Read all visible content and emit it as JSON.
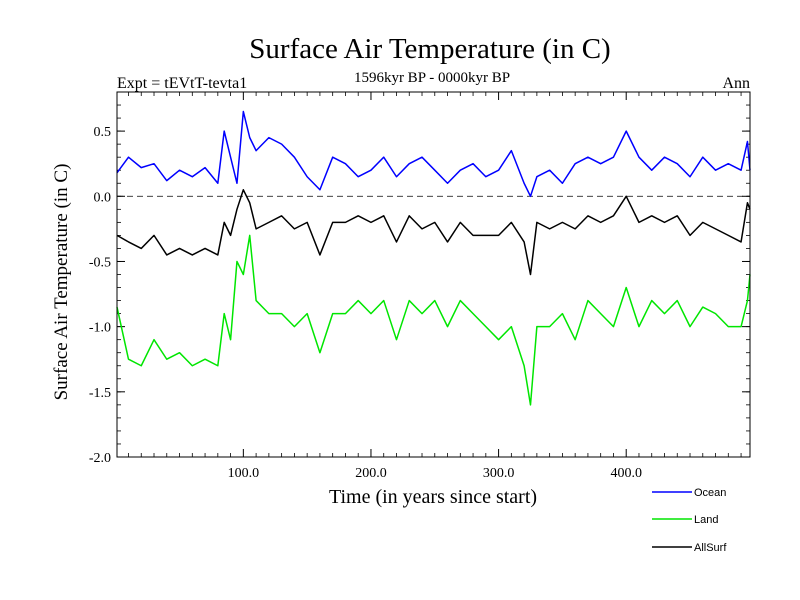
{
  "chart_data": {
    "type": "line",
    "title": "Surface Air Temperature (in C)",
    "subtitle": "1596kyr BP - 0000kyr BP",
    "top_left_label": "Expt = tEVtT-tevta1",
    "top_right_label": "Ann",
    "xlabel": "Time (in years since start)",
    "ylabel": "Surface Air Temperature (in C)",
    "xlim": [
      1,
      497
    ],
    "ylim": [
      -2.0,
      0.8
    ],
    "xticks": [
      {
        "value": 100,
        "label": "100.0"
      },
      {
        "value": 200,
        "label": "200.0"
      },
      {
        "value": 300,
        "label": "300.0"
      },
      {
        "value": 400,
        "label": "400.0"
      }
    ],
    "yticks": [
      {
        "value": 0.5,
        "label": "0.5"
      },
      {
        "value": 0.0,
        "label": "0.0"
      },
      {
        "value": -0.5,
        "label": "-0.5"
      },
      {
        "value": -1.0,
        "label": "-1.0"
      },
      {
        "value": -1.5,
        "label": "-1.5"
      },
      {
        "value": -2.0,
        "label": "-2.0"
      }
    ],
    "reference_line": 0.0,
    "x": [
      1,
      10,
      20,
      30,
      40,
      50,
      60,
      70,
      80,
      85,
      90,
      95,
      100,
      105,
      110,
      120,
      130,
      140,
      150,
      160,
      170,
      180,
      190,
      200,
      210,
      220,
      230,
      240,
      250,
      260,
      270,
      280,
      290,
      300,
      310,
      320,
      325,
      330,
      340,
      350,
      360,
      370,
      380,
      390,
      400,
      410,
      420,
      430,
      440,
      450,
      460,
      470,
      480,
      490,
      495,
      497
    ],
    "series": [
      {
        "name": "Ocean",
        "color": "#0000ff",
        "values": [
          0.18,
          0.3,
          0.22,
          0.25,
          0.12,
          0.2,
          0.15,
          0.22,
          0.1,
          0.5,
          0.3,
          0.1,
          0.65,
          0.45,
          0.35,
          0.45,
          0.4,
          0.3,
          0.15,
          0.05,
          0.3,
          0.25,
          0.15,
          0.2,
          0.3,
          0.15,
          0.25,
          0.3,
          0.2,
          0.1,
          0.2,
          0.25,
          0.15,
          0.2,
          0.35,
          0.1,
          0.0,
          0.15,
          0.2,
          0.1,
          0.25,
          0.3,
          0.25,
          0.3,
          0.5,
          0.3,
          0.2,
          0.3,
          0.25,
          0.15,
          0.3,
          0.2,
          0.25,
          0.2,
          0.42,
          0.2
        ]
      },
      {
        "name": "Land",
        "color": "#00e600",
        "values": [
          -0.85,
          -1.25,
          -1.3,
          -1.1,
          -1.25,
          -1.2,
          -1.3,
          -1.25,
          -1.3,
          -0.9,
          -1.1,
          -0.5,
          -0.6,
          -0.3,
          -0.8,
          -0.9,
          -0.9,
          -1.0,
          -0.9,
          -1.2,
          -0.9,
          -0.9,
          -0.8,
          -0.9,
          -0.8,
          -1.1,
          -0.8,
          -0.9,
          -0.8,
          -1.0,
          -0.8,
          -0.9,
          -1.0,
          -1.1,
          -1.0,
          -1.3,
          -1.6,
          -1.0,
          -1.0,
          -0.9,
          -1.1,
          -0.8,
          -0.9,
          -1.0,
          -0.7,
          -1.0,
          -0.8,
          -0.9,
          -0.8,
          -1.0,
          -0.85,
          -0.9,
          -1.0,
          -1.0,
          -0.8,
          -0.6
        ]
      },
      {
        "name": "AllSurf",
        "color": "#000000",
        "values": [
          -0.3,
          -0.35,
          -0.4,
          -0.3,
          -0.45,
          -0.4,
          -0.45,
          -0.4,
          -0.45,
          -0.2,
          -0.3,
          -0.1,
          0.05,
          -0.05,
          -0.25,
          -0.2,
          -0.15,
          -0.25,
          -0.2,
          -0.45,
          -0.2,
          -0.2,
          -0.15,
          -0.2,
          -0.15,
          -0.35,
          -0.15,
          -0.25,
          -0.2,
          -0.35,
          -0.2,
          -0.3,
          -0.3,
          -0.3,
          -0.2,
          -0.35,
          -0.6,
          -0.2,
          -0.25,
          -0.2,
          -0.25,
          -0.15,
          -0.2,
          -0.15,
          0.0,
          -0.2,
          -0.15,
          -0.2,
          -0.15,
          -0.3,
          -0.2,
          -0.25,
          -0.3,
          -0.35,
          -0.05,
          -0.1
        ]
      }
    ],
    "legend_position": "bottom-right"
  }
}
